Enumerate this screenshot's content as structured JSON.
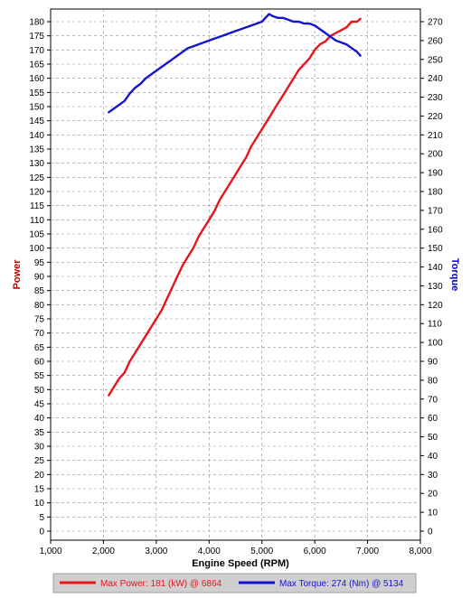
{
  "chart_data": {
    "type": "line",
    "xlabel": "Engine Speed (RPM)",
    "ylabel_left": "Power",
    "ylabel_right": "Torque",
    "xlim": [
      1000,
      8000
    ],
    "x_ticks": [
      "1,000",
      "2,000",
      "3,000",
      "4,000",
      "5,000",
      "6,000",
      "7,000",
      "8,000"
    ],
    "x_tick_values": [
      1000,
      2000,
      3000,
      4000,
      5000,
      6000,
      7000,
      8000
    ],
    "ylim_left": [
      0,
      180
    ],
    "y_left_ticks": [
      "0",
      "5",
      "10",
      "15",
      "20",
      "25",
      "30",
      "35",
      "40",
      "45",
      "50",
      "55",
      "60",
      "65",
      "70",
      "75",
      "80",
      "85",
      "90",
      "95",
      "100",
      "105",
      "110",
      "115",
      "120",
      "125",
      "130",
      "135",
      "140",
      "145",
      "150",
      "155",
      "160",
      "165",
      "170",
      "175",
      "180"
    ],
    "ylim_right": [
      0,
      270
    ],
    "y_right_ticks": [
      "0",
      "10",
      "20",
      "30",
      "40",
      "50",
      "60",
      "70",
      "80",
      "90",
      "100",
      "110",
      "120",
      "130",
      "140",
      "150",
      "160",
      "170",
      "180",
      "190",
      "200",
      "210",
      "220",
      "230",
      "240",
      "250",
      "260",
      "270"
    ],
    "grid": true,
    "colors": {
      "power": "#e8141c",
      "torque": "#1414d2",
      "left_label": "#c80000",
      "right_label": "#0000c8"
    },
    "series": [
      {
        "name": "Power",
        "axis": "left",
        "x": [
          2100,
          2200,
          2300,
          2400,
          2500,
          2600,
          2700,
          2800,
          2900,
          3000,
          3100,
          3200,
          3300,
          3400,
          3500,
          3600,
          3700,
          3800,
          3900,
          4000,
          4100,
          4200,
          4300,
          4400,
          4500,
          4600,
          4700,
          4800,
          4900,
          5000,
          5100,
          5200,
          5300,
          5400,
          5500,
          5600,
          5700,
          5800,
          5900,
          6000,
          6100,
          6200,
          6300,
          6400,
          6500,
          6600,
          6700,
          6800,
          6864
        ],
        "values": [
          48,
          51,
          54,
          56,
          60,
          63,
          66,
          69,
          72,
          75,
          78,
          82,
          86,
          90,
          94,
          97,
          100,
          104,
          107,
          110,
          113,
          117,
          120,
          123,
          126,
          129,
          132,
          136,
          139,
          142,
          145,
          148,
          151,
          154,
          157,
          160,
          163,
          165,
          167,
          170,
          172,
          173,
          175,
          176,
          177,
          178,
          180,
          180,
          181
        ]
      },
      {
        "name": "Torque",
        "axis": "right",
        "x": [
          2100,
          2200,
          2300,
          2400,
          2500,
          2600,
          2700,
          2800,
          2900,
          3000,
          3100,
          3200,
          3300,
          3400,
          3500,
          3600,
          3700,
          3800,
          3900,
          4000,
          4100,
          4200,
          4300,
          4400,
          4500,
          4600,
          4700,
          4800,
          4900,
          5000,
          5134,
          5200,
          5300,
          5400,
          5500,
          5600,
          5700,
          5800,
          5900,
          6000,
          6100,
          6200,
          6300,
          6400,
          6500,
          6600,
          6700,
          6800,
          6864
        ],
        "values": [
          222,
          224,
          226,
          228,
          232,
          235,
          237,
          240,
          242,
          244,
          246,
          248,
          250,
          252,
          254,
          256,
          257,
          258,
          259,
          260,
          261,
          262,
          263,
          264,
          265,
          266,
          267,
          268,
          269,
          270,
          274,
          273,
          272,
          272,
          271,
          270,
          270,
          269,
          269,
          268,
          266,
          264,
          262,
          260,
          259,
          258,
          256,
          254,
          252
        ]
      }
    ]
  },
  "legend": {
    "power_text": "Max Power: 181 (kW) @ 6864",
    "torque_text": "Max Torque: 274 (Nm) @ 5134"
  }
}
